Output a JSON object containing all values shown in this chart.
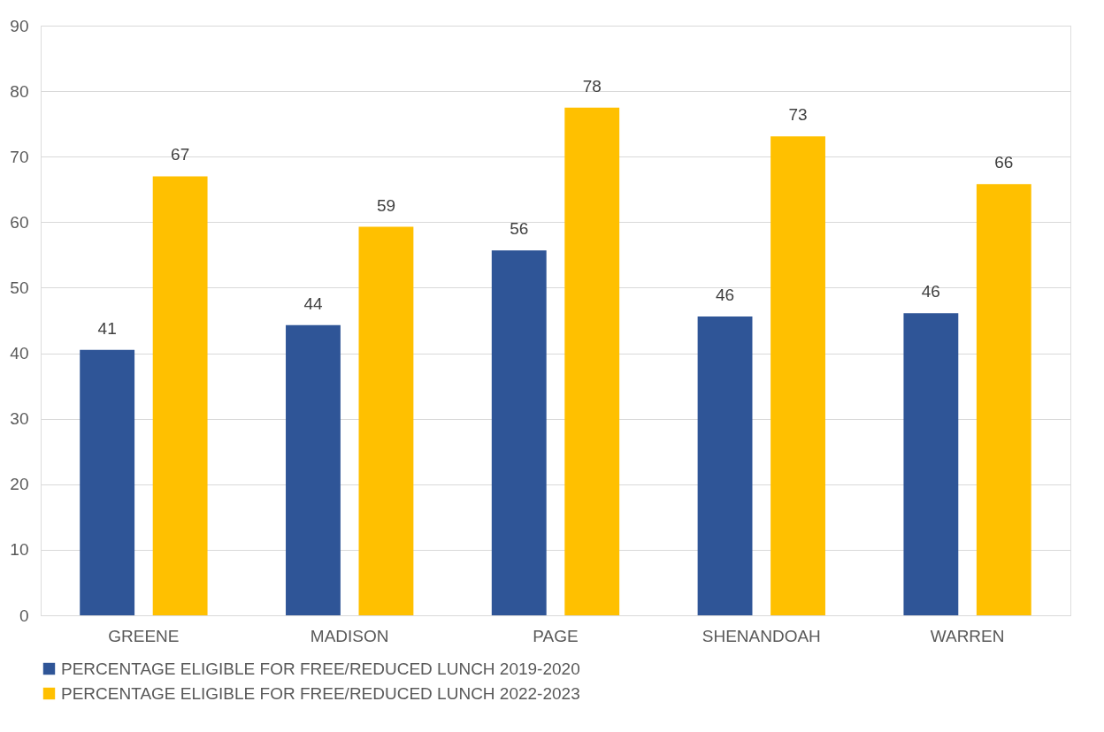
{
  "chart_data": {
    "type": "bar",
    "categories": [
      "GREENE",
      "MADISON",
      "PAGE",
      "SHENANDOAH",
      "WARREN"
    ],
    "series": [
      {
        "name": "PERCENTAGE ELIGIBLE FOR FREE/REDUCED LUNCH 2019-2020",
        "color": "#2f5597",
        "values": [
          40.5,
          44.3,
          55.7,
          45.6,
          46.1
        ],
        "value_labels": [
          "41",
          "44",
          "56",
          "46",
          "46"
        ]
      },
      {
        "name": "PERCENTAGE ELIGIBLE FOR FREE/REDUCED LUNCH 2022-2023",
        "color": "#ffc000",
        "values": [
          67.0,
          59.3,
          77.5,
          73.1,
          65.8
        ],
        "value_labels": [
          "67",
          "59",
          "78",
          "73",
          "66"
        ]
      }
    ],
    "ylim": [
      0,
      90
    ],
    "yticks": [
      0,
      10,
      20,
      30,
      40,
      50,
      60,
      70,
      80,
      90
    ],
    "grid": "y",
    "legend": "bottom"
  }
}
